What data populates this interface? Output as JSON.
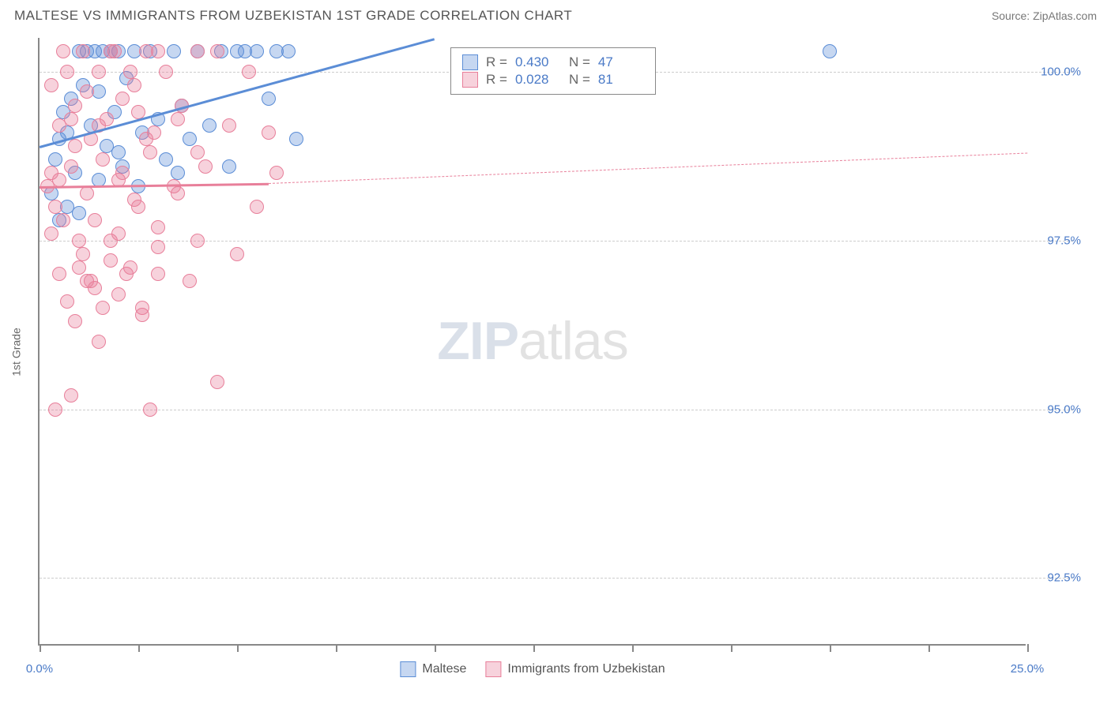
{
  "title": "MALTESE VS IMMIGRANTS FROM UZBEKISTAN 1ST GRADE CORRELATION CHART",
  "source": "Source: ZipAtlas.com",
  "ylabel": "1st Grade",
  "watermark_bold": "ZIP",
  "watermark_light": "atlas",
  "chart": {
    "type": "scatter-with-regression",
    "background": "#ffffff",
    "grid_color": "#cccccc",
    "axis_color": "#888888",
    "text_color": "#666666",
    "value_color": "#4a7ac7",
    "xlim": [
      0,
      25
    ],
    "ylim": [
      91.5,
      100.5
    ],
    "xticks": [
      0,
      2.5,
      5,
      7.5,
      10,
      12.5,
      15,
      17.5,
      20,
      22.5,
      25
    ],
    "xtick_labels": {
      "0": "0.0%",
      "25": "25.0%"
    },
    "yticks": [
      92.5,
      95.0,
      97.5,
      100.0
    ],
    "ytick_labels": [
      "92.5%",
      "95.0%",
      "97.5%",
      "100.0%"
    ],
    "marker_radius": 9,
    "marker_opacity": 0.45,
    "series": [
      {
        "name": "Maltese",
        "color": "#5b8dd6",
        "fill": "rgba(91,141,214,0.35)",
        "R": "0.430",
        "N": "47",
        "regression": {
          "x1": 0,
          "y1": 98.9,
          "x2": 10.0,
          "y2": 100.5,
          "solid_until_x": 10.0,
          "dashed": false
        },
        "points": [
          [
            0.3,
            98.2
          ],
          [
            0.4,
            98.7
          ],
          [
            0.5,
            99.0
          ],
          [
            0.6,
            99.4
          ],
          [
            0.7,
            99.1
          ],
          [
            0.8,
            99.6
          ],
          [
            0.9,
            98.5
          ],
          [
            1.0,
            100.3
          ],
          [
            1.1,
            99.8
          ],
          [
            1.2,
            100.3
          ],
          [
            1.3,
            99.2
          ],
          [
            1.4,
            100.3
          ],
          [
            1.5,
            99.7
          ],
          [
            1.6,
            100.3
          ],
          [
            1.7,
            98.9
          ],
          [
            1.8,
            100.3
          ],
          [
            1.9,
            99.4
          ],
          [
            2.0,
            100.3
          ],
          [
            2.1,
            98.6
          ],
          [
            2.2,
            99.9
          ],
          [
            2.4,
            100.3
          ],
          [
            2.6,
            99.1
          ],
          [
            2.8,
            100.3
          ],
          [
            3.0,
            99.3
          ],
          [
            3.2,
            98.7
          ],
          [
            3.4,
            100.3
          ],
          [
            3.6,
            99.5
          ],
          [
            3.8,
            99.0
          ],
          [
            4.0,
            100.3
          ],
          [
            4.3,
            99.2
          ],
          [
            4.6,
            100.3
          ],
          [
            4.8,
            98.6
          ],
          [
            5.0,
            100.3
          ],
          [
            5.2,
            100.3
          ],
          [
            5.5,
            100.3
          ],
          [
            5.8,
            99.6
          ],
          [
            6.0,
            100.3
          ],
          [
            6.3,
            100.3
          ],
          [
            6.5,
            99.0
          ],
          [
            2.5,
            98.3
          ],
          [
            1.0,
            97.9
          ],
          [
            0.5,
            97.8
          ],
          [
            0.7,
            98.0
          ],
          [
            1.5,
            98.4
          ],
          [
            2.0,
            98.8
          ],
          [
            3.5,
            98.5
          ],
          [
            20.0,
            100.3
          ]
        ]
      },
      {
        "name": "Immigrants from Uzbekistan",
        "color": "#e87f9a",
        "fill": "rgba(232,127,154,0.35)",
        "R": "0.028",
        "N": "81",
        "regression": {
          "x1": 0,
          "y1": 98.3,
          "x2": 5.8,
          "y2": 98.35,
          "dash_x2": 25.0,
          "dash_y2": 98.8
        },
        "points": [
          [
            0.2,
            98.3
          ],
          [
            0.3,
            98.5
          ],
          [
            0.4,
            98.0
          ],
          [
            0.5,
            99.2
          ],
          [
            0.6,
            97.8
          ],
          [
            0.7,
            100.0
          ],
          [
            0.8,
            98.6
          ],
          [
            0.9,
            99.5
          ],
          [
            1.0,
            97.5
          ],
          [
            1.1,
            100.3
          ],
          [
            1.2,
            98.2
          ],
          [
            1.3,
            99.0
          ],
          [
            1.4,
            96.8
          ],
          [
            1.5,
            100.0
          ],
          [
            1.6,
            98.7
          ],
          [
            1.7,
            99.3
          ],
          [
            1.8,
            97.2
          ],
          [
            1.9,
            100.3
          ],
          [
            2.0,
            98.4
          ],
          [
            2.1,
            99.6
          ],
          [
            2.2,
            97.0
          ],
          [
            2.3,
            100.0
          ],
          [
            2.4,
            98.1
          ],
          [
            2.5,
            99.4
          ],
          [
            2.6,
            96.5
          ],
          [
            2.7,
            100.3
          ],
          [
            2.8,
            98.8
          ],
          [
            2.9,
            99.1
          ],
          [
            3.0,
            97.7
          ],
          [
            3.2,
            100.0
          ],
          [
            3.4,
            98.3
          ],
          [
            3.6,
            99.5
          ],
          [
            3.8,
            96.9
          ],
          [
            4.0,
            100.3
          ],
          [
            4.2,
            98.6
          ],
          [
            4.5,
            95.4
          ],
          [
            4.8,
            99.2
          ],
          [
            5.0,
            97.3
          ],
          [
            5.3,
            100.0
          ],
          [
            5.5,
            98.0
          ],
          [
            5.8,
            99.1
          ],
          [
            6.0,
            98.5
          ],
          [
            0.3,
            97.6
          ],
          [
            0.5,
            97.0
          ],
          [
            0.7,
            96.6
          ],
          [
            0.9,
            96.3
          ],
          [
            1.1,
            97.3
          ],
          [
            1.3,
            96.9
          ],
          [
            1.5,
            96.0
          ],
          [
            1.8,
            97.5
          ],
          [
            2.0,
            96.7
          ],
          [
            2.3,
            97.1
          ],
          [
            2.6,
            96.4
          ],
          [
            3.0,
            97.4
          ],
          [
            0.4,
            95.0
          ],
          [
            0.8,
            95.2
          ],
          [
            1.2,
            96.9
          ],
          [
            1.6,
            96.5
          ],
          [
            2.8,
            95.0
          ],
          [
            3.0,
            97.0
          ],
          [
            3.5,
            98.2
          ],
          [
            4.0,
            97.5
          ],
          [
            4.5,
            100.3
          ],
          [
            0.3,
            99.8
          ],
          [
            0.6,
            100.3
          ],
          [
            0.9,
            98.9
          ],
          [
            1.2,
            99.7
          ],
          [
            1.5,
            99.2
          ],
          [
            1.8,
            100.3
          ],
          [
            2.1,
            98.5
          ],
          [
            2.4,
            99.8
          ],
          [
            2.7,
            99.0
          ],
          [
            3.0,
            100.3
          ],
          [
            3.5,
            99.3
          ],
          [
            4.0,
            98.8
          ],
          [
            1.0,
            97.1
          ],
          [
            1.4,
            97.8
          ],
          [
            2.0,
            97.6
          ],
          [
            2.5,
            98.0
          ],
          [
            0.5,
            98.4
          ],
          [
            0.8,
            99.3
          ]
        ]
      }
    ]
  }
}
